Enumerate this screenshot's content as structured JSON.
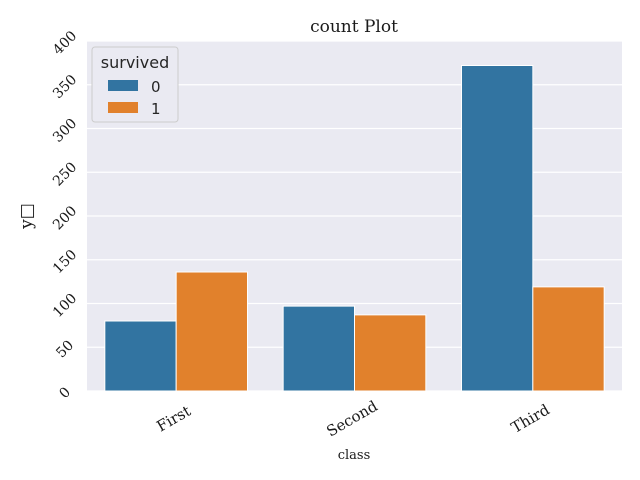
{
  "chart_data": {
    "type": "bar",
    "title": "count Plot",
    "xlabel": "class",
    "ylabel": "y□",
    "categories": [
      "First",
      "Second",
      "Third"
    ],
    "series": [
      {
        "name": "0",
        "values": [
          80,
          97,
          372
        ]
      },
      {
        "name": "1",
        "values": [
          136,
          87,
          119
        ]
      }
    ],
    "ylim": [
      0,
      400
    ],
    "yticks": [
      0,
      50,
      100,
      150,
      200,
      250,
      300,
      350,
      400
    ],
    "grid": true,
    "legend": {
      "title": "survived",
      "position": "top-left"
    },
    "colors": {
      "series": [
        "#3274a1",
        "#e1812c"
      ],
      "background": "#eaeaf2",
      "grid": "#ffffff"
    }
  }
}
